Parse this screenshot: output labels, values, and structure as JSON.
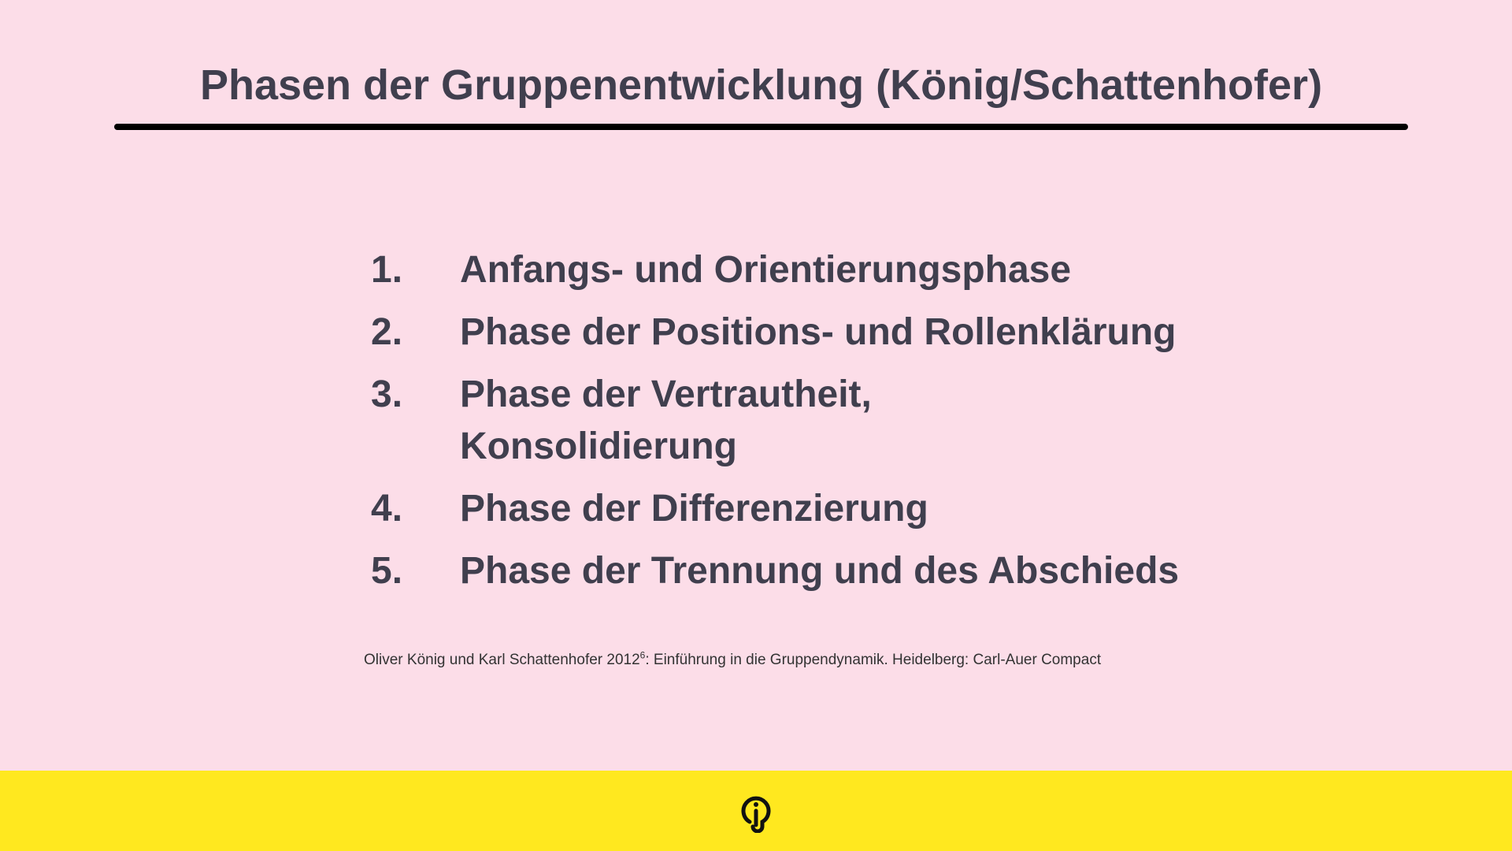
{
  "title": "Phasen der Gruppenentwicklung (König/Schattenhofer)",
  "items": [
    {
      "number": "1.",
      "text": "Anfangs- und Orientierungsphase"
    },
    {
      "number": "2.",
      "text": "Phase der Positions- und Rollenklärung"
    },
    {
      "number": "3.",
      "text": "Phase der Vertrautheit, Konsolidierung"
    },
    {
      "number": "4.",
      "text": "Phase der Differenzierung"
    },
    {
      "number": "5.",
      "text": "Phase der Trennung und des Abschieds"
    }
  ],
  "citation": {
    "before": "Oliver König und Karl Schattenhofer 2012",
    "superscript": "6",
    "after": ": Einführung in die Gruppendynamik. Heidelberg: Carl-Auer Compact"
  },
  "colors": {
    "background": "#fcdde8",
    "footer": "#ffe81f",
    "text": "#403f4e"
  },
  "footer": {
    "icon": "lightbulb-i-logo-icon"
  }
}
